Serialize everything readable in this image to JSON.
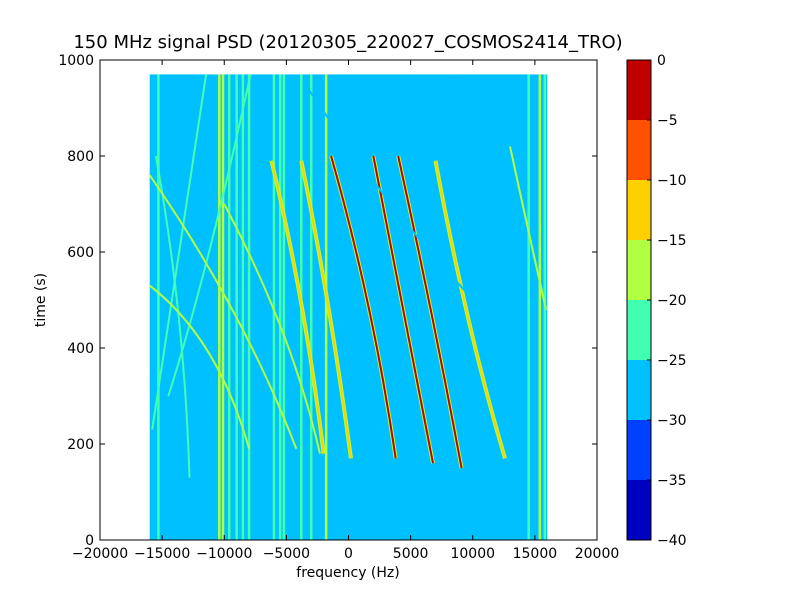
{
  "chart_data": {
    "type": "heatmap",
    "title": "150 MHz signal PSD (20120305_220027_COSMOS2414_TRO)",
    "xlabel": "frequency (Hz)",
    "ylabel": "time (s)",
    "xlim": [
      -20000,
      20000
    ],
    "ylim": [
      0,
      1000
    ],
    "grid": false,
    "x_ticks": [
      -20000,
      -15000,
      -10000,
      -5000,
      0,
      5000,
      10000,
      15000,
      20000
    ],
    "y_ticks": [
      0,
      200,
      400,
      600,
      800,
      1000
    ],
    "data_extent": {
      "x": [
        -16000,
        16000
      ],
      "y": [
        0,
        970
      ]
    },
    "background_level": -28,
    "colorbar": {
      "levels": [
        -40,
        -35,
        -30,
        -25,
        -20,
        -15,
        -10,
        -5,
        0
      ],
      "tick_labels": [
        "−40",
        "−35",
        "−30",
        "−25",
        "−20",
        "−15",
        "−10",
        "−5",
        "0"
      ],
      "colors": [
        "#0000c0",
        "#0040ff",
        "#00c0ff",
        "#40ffb0",
        "#b0ff40",
        "#ffd000",
        "#ff5000",
        "#c00000"
      ]
    },
    "vertical_lines": [
      {
        "x": -15300,
        "level": -22
      },
      {
        "x": -10400,
        "level": -18
      },
      {
        "x": -10100,
        "level": -18
      },
      {
        "x": -9600,
        "level": -22
      },
      {
        "x": -9000,
        "level": -22
      },
      {
        "x": -8500,
        "level": -22
      },
      {
        "x": -8000,
        "level": -24
      },
      {
        "x": -6000,
        "level": -22
      },
      {
        "x": -5500,
        "level": -22
      },
      {
        "x": -5200,
        "level": -22
      },
      {
        "x": -3800,
        "level": -24
      },
      {
        "x": -3000,
        "level": -22
      },
      {
        "x": -1800,
        "level": -18
      },
      {
        "x": 9100,
        "level": -26
      },
      {
        "x": 14500,
        "level": -24
      },
      {
        "x": 15400,
        "level": -20
      },
      {
        "x": 15800,
        "level": -22
      }
    ],
    "series": [
      {
        "values": [
          [
            -11400,
            980
          ],
          [
            -13600,
            600
          ],
          [
            -15800,
            230
          ]
        ],
        "level": -22
      },
      {
        "values": [
          [
            -7800,
            980
          ],
          [
            -11300,
            560
          ],
          [
            -14500,
            300
          ]
        ],
        "level": -24
      },
      {
        "values": [
          [
            -15500,
            800
          ],
          [
            -13200,
            470
          ],
          [
            -12800,
            130
          ]
        ],
        "level": -24
      },
      {
        "values": [
          [
            -16000,
            530
          ],
          [
            -10500,
            420
          ],
          [
            -8000,
            190
          ]
        ],
        "level": -20
      },
      {
        "values": [
          [
            -16000,
            760
          ],
          [
            -8500,
            480
          ],
          [
            -4200,
            190
          ]
        ],
        "level": -20
      },
      {
        "values": [
          [
            -10000,
            700
          ],
          [
            -4500,
            430
          ],
          [
            -2300,
            180
          ]
        ],
        "level": -20
      },
      {
        "values": [
          [
            -6200,
            790
          ],
          [
            -3500,
            500
          ],
          [
            -2000,
            180
          ]
        ],
        "level": -12
      },
      {
        "values": [
          [
            -3800,
            790
          ],
          [
            -1500,
            500
          ],
          [
            200,
            170
          ]
        ],
        "level": -12
      },
      {
        "values": [
          [
            -1400,
            800
          ],
          [
            2000,
            490
          ],
          [
            3800,
            170
          ]
        ],
        "level": -5
      },
      {
        "values": [
          [
            2000,
            800
          ],
          [
            4500,
            470
          ],
          [
            6800,
            160
          ]
        ],
        "level": -5
      },
      {
        "values": [
          [
            4000,
            800
          ],
          [
            6800,
            470
          ],
          [
            9100,
            150
          ]
        ],
        "level": -5
      },
      {
        "values": [
          [
            7000,
            790
          ],
          [
            9500,
            440
          ],
          [
            12600,
            170
          ]
        ],
        "level": -12
      },
      {
        "values": [
          [
            -3500,
            950
          ],
          [
            6000,
            580
          ],
          [
            14200,
            400
          ]
        ],
        "level": -26
      },
      {
        "values": [
          [
            13000,
            820
          ],
          [
            14500,
            640
          ],
          [
            15900,
            480
          ]
        ],
        "level": -20
      },
      {
        "values": [
          [
            7500,
            900
          ],
          [
            9000,
            700
          ],
          [
            10200,
            500
          ]
        ],
        "level": -26
      }
    ]
  }
}
